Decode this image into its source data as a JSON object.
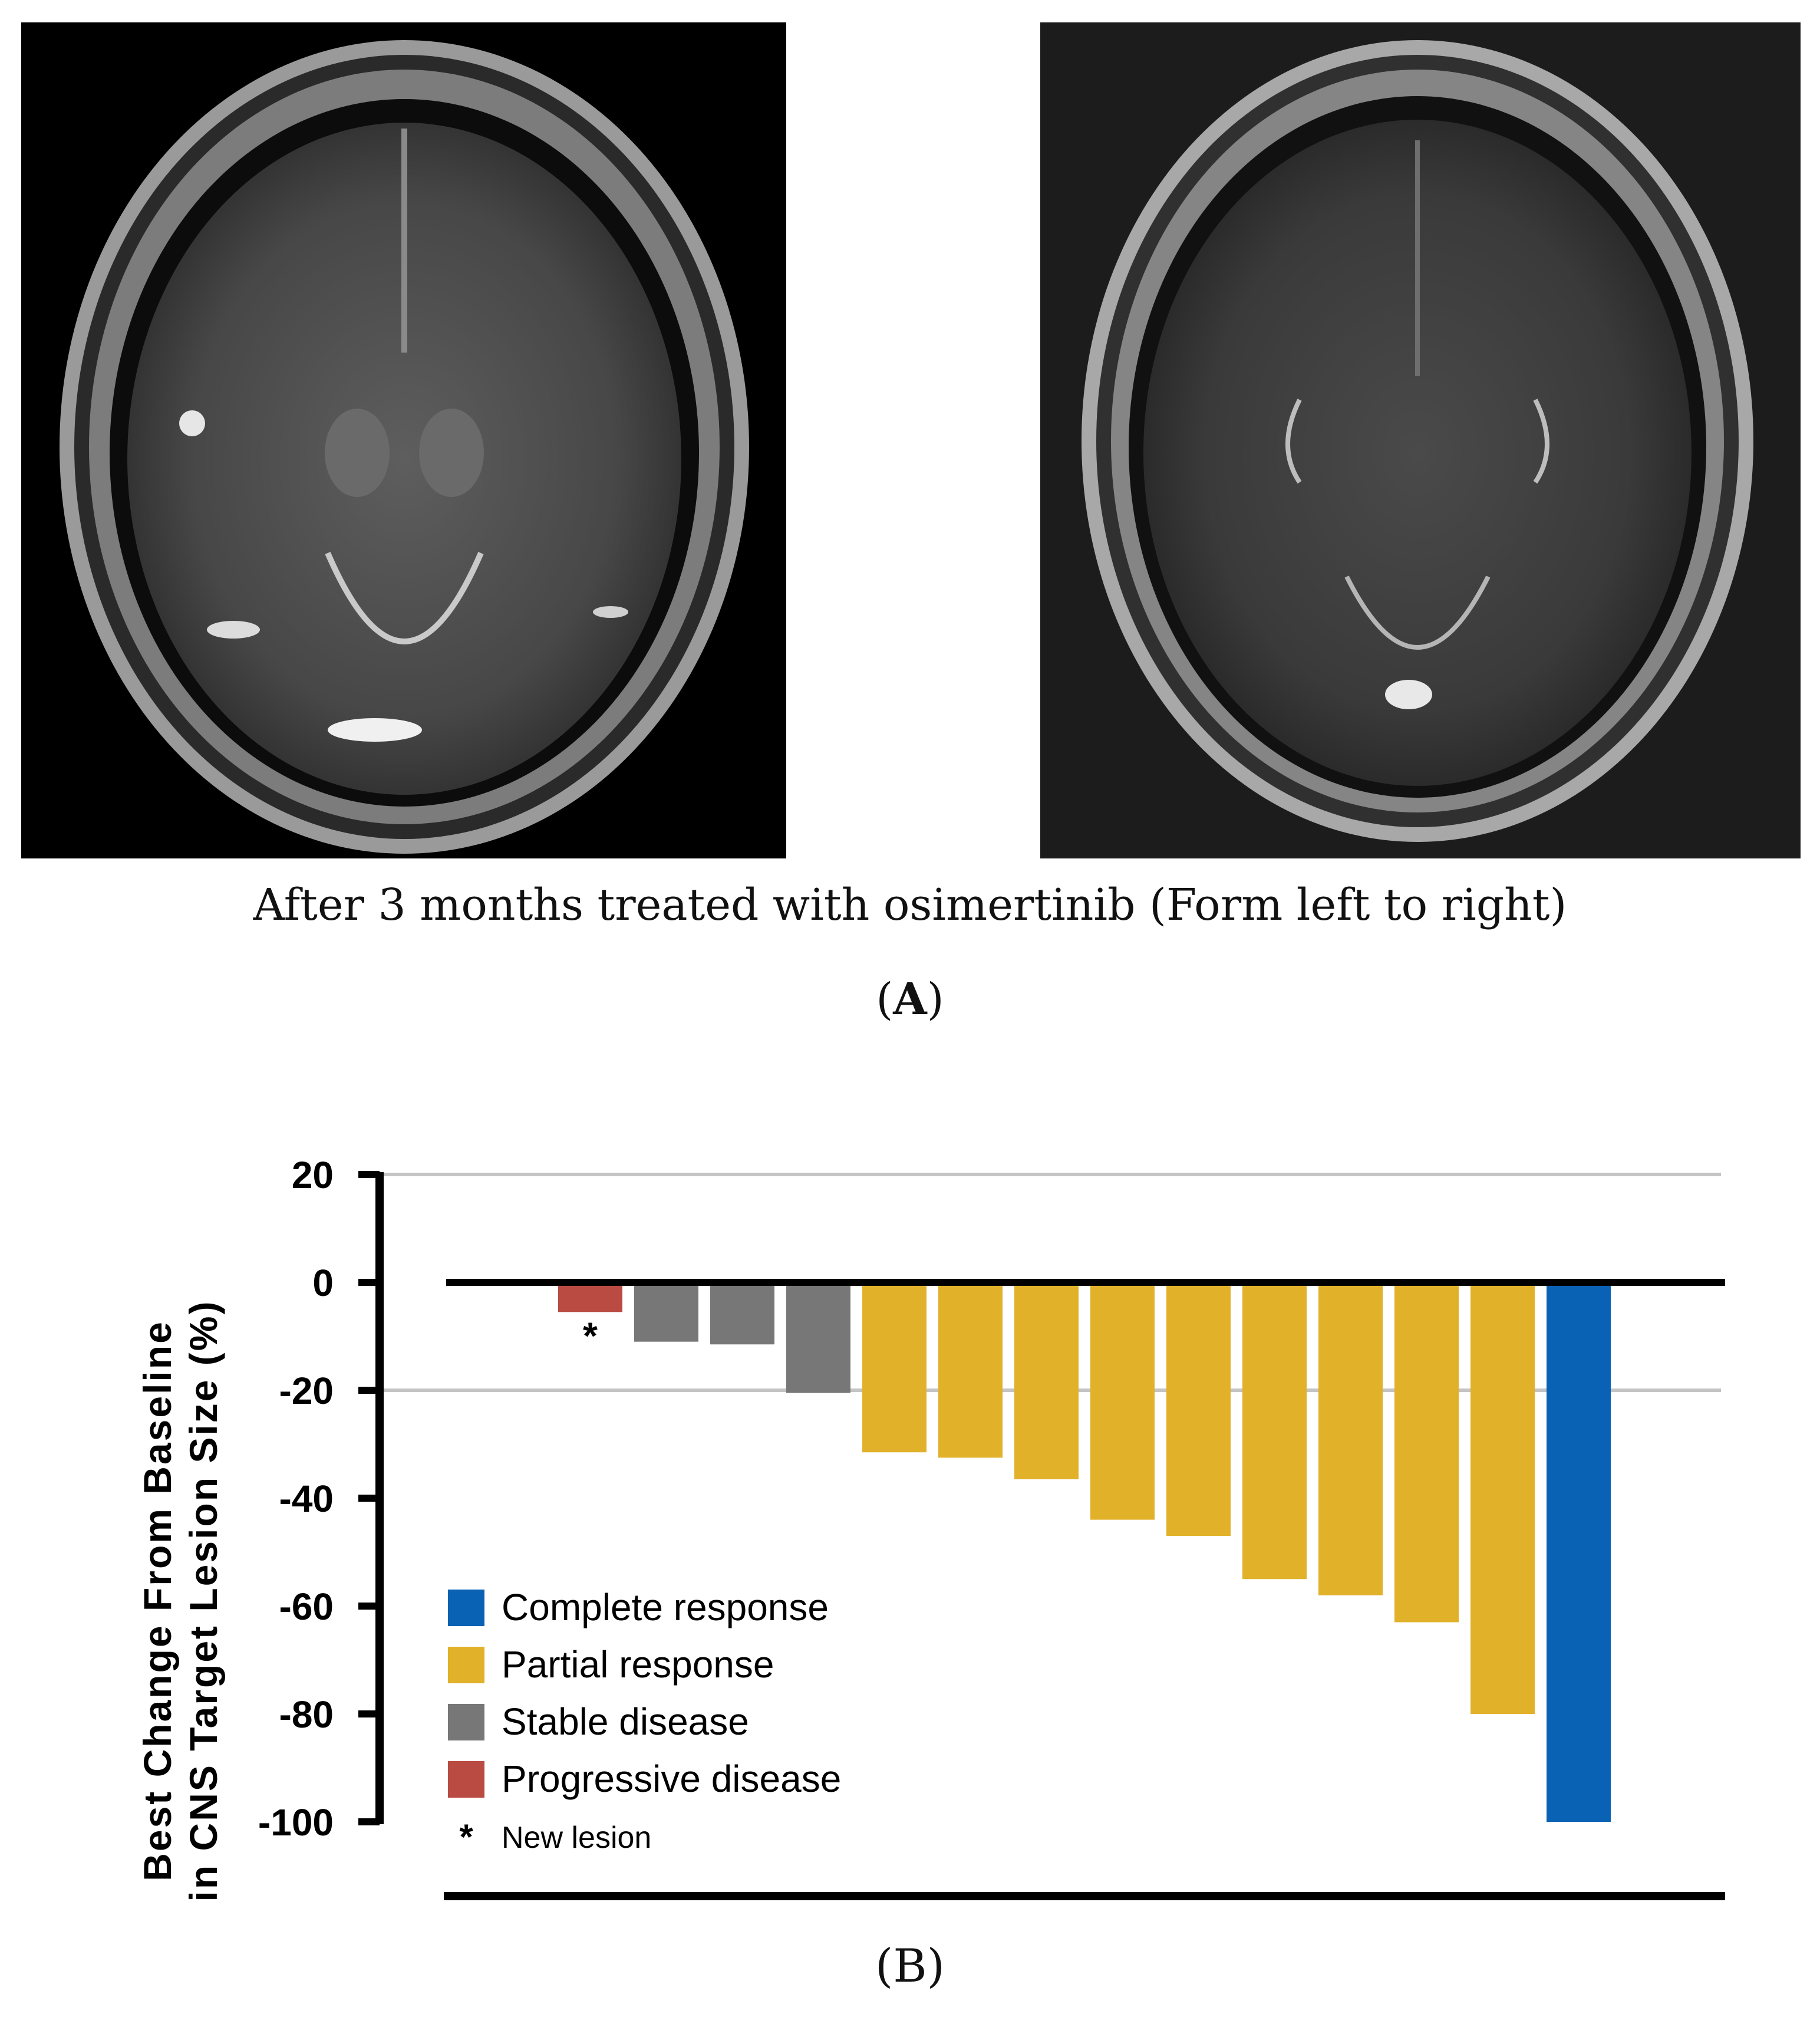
{
  "figure": {
    "caption_a": "After 3 months treated with osimertinib (Form left to right)",
    "panel_a_open": "(",
    "panel_a_letter": "A",
    "panel_a_close": ")",
    "panel_b_label": "(B)"
  },
  "chart_data": {
    "type": "bar",
    "title": "",
    "ylabel_line1": "Best Change From Baseline",
    "ylabel_line2": "in CNS Target Lesion Size (%)",
    "xlabel": "",
    "ylim": [
      -100,
      20
    ],
    "yticks": [
      20,
      0,
      -20,
      -40,
      -60,
      -80,
      -100
    ],
    "ytick_labels": [
      "20",
      "0",
      "-20",
      "-40",
      "-60",
      "-80",
      "-100"
    ],
    "gridlines": [
      20,
      -20
    ],
    "colors": {
      "Complete response": "#0a62b5",
      "Partial response": "#e1b12a",
      "Stable disease": "#777777",
      "Progressive disease": "#b94b43"
    },
    "bars": [
      {
        "value": 0.5,
        "category": "Stable disease",
        "marker": ""
      },
      {
        "value": -5.5,
        "category": "Progressive disease",
        "marker": "*"
      },
      {
        "value": -11,
        "category": "Stable disease",
        "marker": ""
      },
      {
        "value": -11.5,
        "category": "Stable disease",
        "marker": ""
      },
      {
        "value": -20.5,
        "category": "Stable disease",
        "marker": ""
      },
      {
        "value": -31.5,
        "category": "Partial response",
        "marker": ""
      },
      {
        "value": -32.5,
        "category": "Partial response",
        "marker": ""
      },
      {
        "value": -36.5,
        "category": "Partial response",
        "marker": ""
      },
      {
        "value": -44,
        "category": "Partial response",
        "marker": ""
      },
      {
        "value": -47,
        "category": "Partial response",
        "marker": ""
      },
      {
        "value": -55,
        "category": "Partial response",
        "marker": ""
      },
      {
        "value": -58,
        "category": "Partial response",
        "marker": ""
      },
      {
        "value": -63,
        "category": "Partial response",
        "marker": ""
      },
      {
        "value": -80,
        "category": "Partial response",
        "marker": ""
      },
      {
        "value": -100,
        "category": "Complete response",
        "marker": ""
      }
    ],
    "legend": {
      "position": "bottom-left",
      "items": [
        {
          "label": "Complete response",
          "color": "#0a62b5"
        },
        {
          "label": "Partial response",
          "color": "#e1b12a"
        },
        {
          "label": "Stable disease",
          "color": "#777777"
        },
        {
          "label": "Progressive disease",
          "color": "#b94b43"
        }
      ],
      "note_marker": "*",
      "note_text": "New lesion"
    }
  }
}
